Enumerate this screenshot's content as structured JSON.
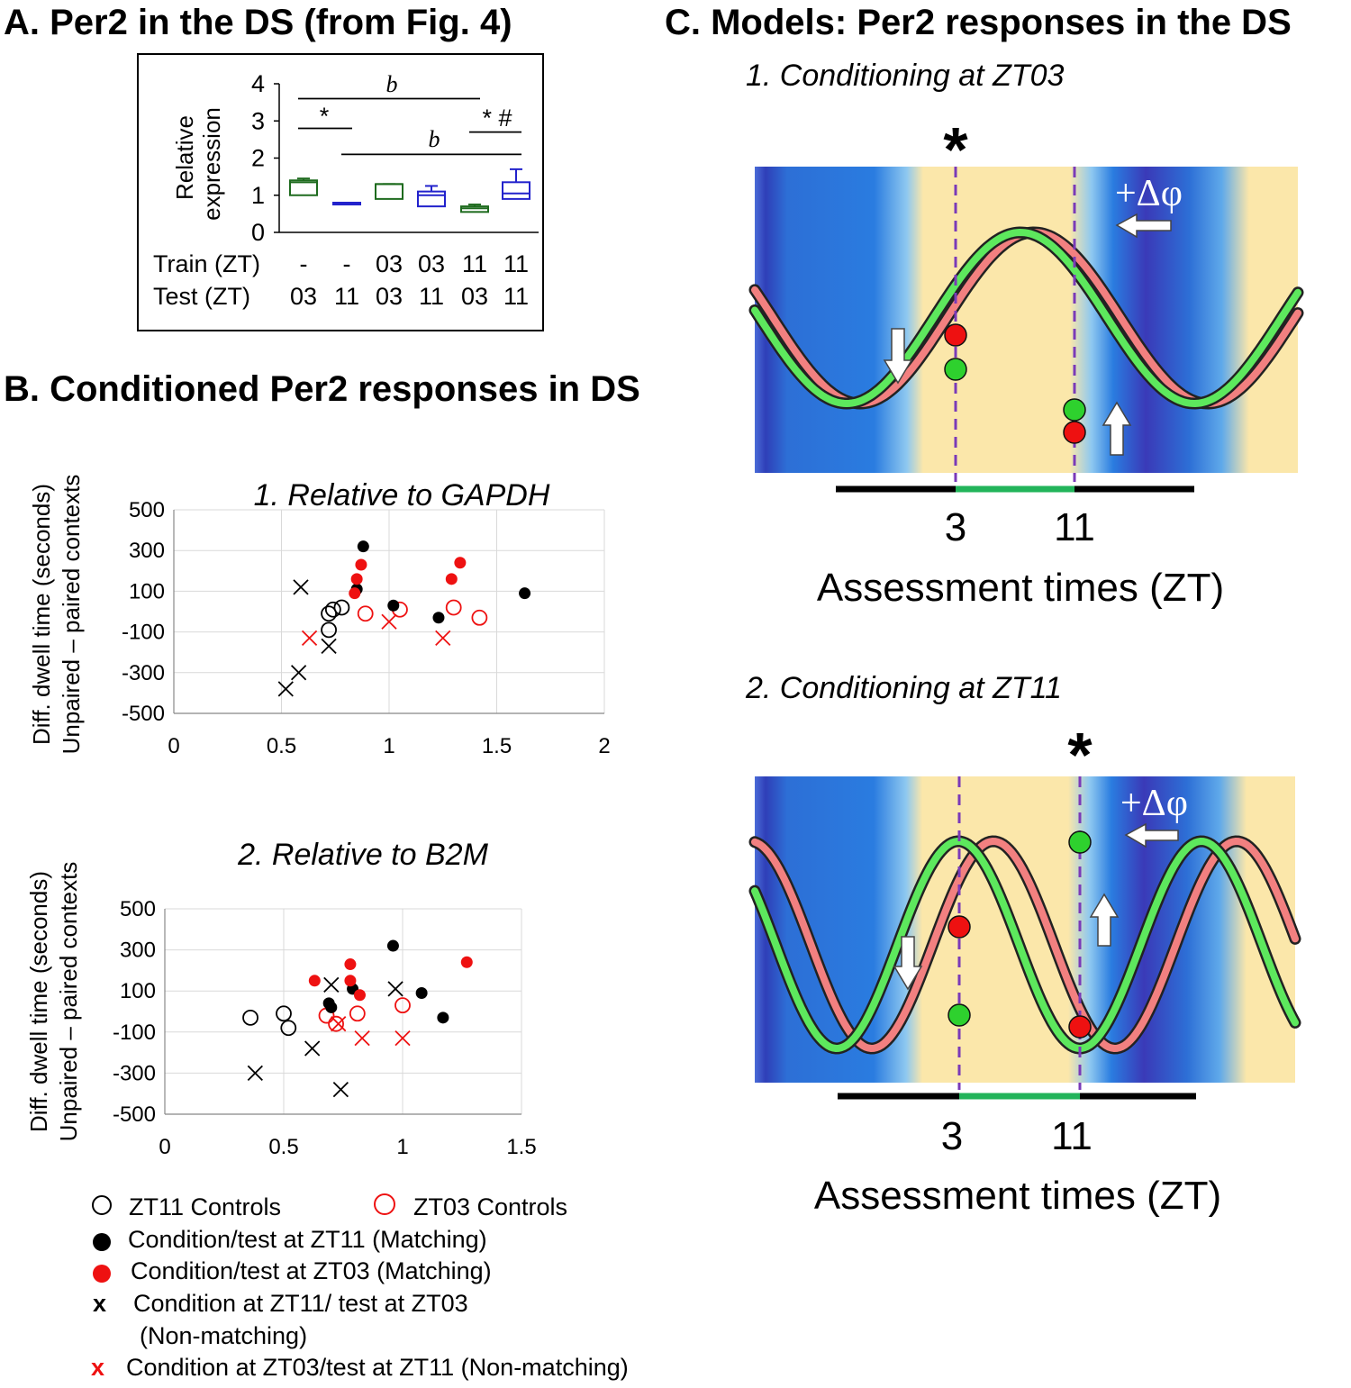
{
  "colors": {
    "green": "#1e6b1e",
    "blue": "#2222cc",
    "red": "#ee1111",
    "black": "#000000",
    "curve_green": "#5de85d",
    "curve_red": "#f28080",
    "bar_green": "#22b45a",
    "night": "#2a6fd6",
    "day": "#fbe7aa"
  },
  "panelA": {
    "title": "A. Per2 in the DS (from Fig. 4)",
    "ylabel_1": "Relative",
    "ylabel_2": "expression",
    "yticks": [
      "0",
      "1",
      "2",
      "3",
      "4"
    ],
    "row1_label": "Train (ZT)",
    "row2_label": "Test  (ZT)",
    "train": [
      "-",
      "-",
      "03",
      "03",
      "11",
      "11"
    ],
    "test": [
      "03",
      "11",
      "03",
      "11",
      "03",
      "11"
    ],
    "sig_b": "b",
    "sig_star": "*",
    "sig_star_hash": "* #"
  },
  "panelB": {
    "title": "B. Conditioned Per2 responses in DS",
    "ylabel_1": "Diff. dwell time (seconds)",
    "ylabel_2": "Unpaired – paired contexts",
    "legend": {
      "zt11_controls": "ZT11  Controls",
      "zt03_controls": "ZT03  Controls",
      "match11": "Condition/test  at  ZT11  (Matching)",
      "match03": "Condition/test  at  ZT03  (Matching)",
      "x_label": "x",
      "nonmatch11_a": "Condition  at ZT11/  test at ZT03",
      "nonmatch11_b": "(Non-matching)",
      "nonmatch03": "Condition  at ZT03/test  at ZT11  (Non-matching)"
    }
  },
  "panelC": {
    "title": "C. Models: Per2 responses in the DS",
    "model1_title": "1. Conditioning at ZT03",
    "model2_title": "2. Conditioning at ZT11",
    "star": "*",
    "phase_label": "+Δφ",
    "tick_3": "3",
    "tick_11": "11",
    "xlabel": "Assessment times (ZT)"
  },
  "chart_data": [
    {
      "type": "box",
      "title": "A. Per2 in the DS (from Fig. 4)",
      "ylabel": "Relative expression",
      "ylim": [
        0,
        4
      ],
      "groups": [
        {
          "train": "-",
          "test": "03",
          "color": "green",
          "q1": 1.0,
          "median": 1.35,
          "q3": 1.4,
          "whisker_low": 1.0,
          "whisker_high": 1.45
        },
        {
          "train": "-",
          "test": "11",
          "color": "blue",
          "q1": 0.75,
          "median": 0.78,
          "q3": 0.8,
          "whisker_low": 0.75,
          "whisker_high": 0.8
        },
        {
          "train": "03",
          "test": "03",
          "color": "green",
          "q1": 0.9,
          "median": 1.3,
          "q3": 1.3,
          "whisker_low": 0.9,
          "whisker_high": 1.3
        },
        {
          "train": "03",
          "test": "11",
          "color": "blue",
          "q1": 0.7,
          "median": 1.0,
          "q3": 1.1,
          "whisker_low": 0.7,
          "whisker_high": 1.25
        },
        {
          "train": "11",
          "test": "03",
          "color": "green",
          "q1": 0.55,
          "median": 0.65,
          "q3": 0.7,
          "whisker_low": 0.55,
          "whisker_high": 0.75
        },
        {
          "train": "11",
          "test": "11",
          "color": "blue",
          "q1": 0.9,
          "median": 1.05,
          "q3": 1.35,
          "whisker_low": 0.9,
          "whisker_high": 1.7
        }
      ],
      "annotations": [
        {
          "text": "b",
          "from_group": 1,
          "to_group": 5,
          "level": 3.6
        },
        {
          "text": "*",
          "from_group": 1,
          "to_group": 2,
          "level": 2.8
        },
        {
          "text": "b",
          "from_group": 2,
          "to_group": 6,
          "level": 2.1
        },
        {
          "text": "* #",
          "from_group": 5,
          "to_group": 6,
          "level": 2.7
        }
      ]
    },
    {
      "type": "scatter",
      "title": "1. Relative to GAPDH",
      "xlabel": "",
      "ylabel": "Diff. dwell time (seconds) Unpaired – paired contexts",
      "xlim": [
        0,
        2
      ],
      "ylim": [
        -500,
        500
      ],
      "xticks": [
        "0",
        "0.5",
        "1",
        "1.5",
        "2"
      ],
      "yticks": [
        "500",
        "300",
        "100",
        "-100",
        "-300",
        "-500"
      ],
      "grid": true,
      "series": [
        {
          "name": "ZT11 Controls",
          "marker": "open-circle",
          "color": "#000000",
          "points": [
            [
              0.72,
              -90
            ],
            [
              0.72,
              -10
            ],
            [
              0.74,
              10
            ],
            [
              0.78,
              20
            ]
          ]
        },
        {
          "name": "ZT03 Controls",
          "marker": "open-circle",
          "color": "#ee1111",
          "points": [
            [
              0.89,
              -10
            ],
            [
              1.05,
              10
            ],
            [
              1.3,
              20
            ],
            [
              1.42,
              -30
            ]
          ]
        },
        {
          "name": "Condition/test at ZT11 (Matching)",
          "marker": "filled-circle",
          "color": "#000000",
          "points": [
            [
              0.85,
              110
            ],
            [
              0.88,
              320
            ],
            [
              1.02,
              30
            ],
            [
              1.23,
              -30
            ],
            [
              1.63,
              90
            ]
          ]
        },
        {
          "name": "Condition/test at ZT03 (Matching)",
          "marker": "filled-circle",
          "color": "#ee1111",
          "points": [
            [
              0.84,
              90
            ],
            [
              0.85,
              160
            ],
            [
              0.87,
              230
            ],
            [
              1.29,
              160
            ],
            [
              1.33,
              240
            ]
          ]
        },
        {
          "name": "Condition at ZT11/ test at ZT03 (Non-matching)",
          "marker": "x",
          "color": "#000000",
          "points": [
            [
              0.52,
              -380
            ],
            [
              0.58,
              -300
            ],
            [
              0.59,
              120
            ],
            [
              0.72,
              -170
            ]
          ]
        },
        {
          "name": "Condition at ZT03/test at ZT11 (Non-matching)",
          "marker": "x",
          "color": "#ee1111",
          "points": [
            [
              0.63,
              -130
            ],
            [
              1.0,
              -50
            ],
            [
              1.25,
              -130
            ]
          ]
        }
      ]
    },
    {
      "type": "scatter",
      "title": "2. Relative to B2M",
      "xlabel": "",
      "ylabel": "Diff. dwell time (seconds) Unpaired – paired contexts",
      "xlim": [
        0,
        1.5
      ],
      "ylim": [
        -500,
        500
      ],
      "xticks": [
        "0",
        "0.5",
        "1",
        "1.5"
      ],
      "yticks": [
        "500",
        "300",
        "100",
        "-100",
        "-300",
        "-500"
      ],
      "grid": true,
      "series": [
        {
          "name": "ZT11 Controls",
          "marker": "open-circle",
          "color": "#000000",
          "points": [
            [
              0.36,
              -30
            ],
            [
              0.5,
              -10
            ],
            [
              0.52,
              -80
            ]
          ]
        },
        {
          "name": "ZT03 Controls",
          "marker": "open-circle",
          "color": "#ee1111",
          "points": [
            [
              0.68,
              -20
            ],
            [
              0.72,
              -60
            ],
            [
              0.81,
              -10
            ],
            [
              1.0,
              30
            ]
          ]
        },
        {
          "name": "Condition/test at ZT11 (Matching)",
          "marker": "filled-circle",
          "color": "#000000",
          "points": [
            [
              0.69,
              40
            ],
            [
              0.7,
              20
            ],
            [
              0.79,
              110
            ],
            [
              0.96,
              320
            ],
            [
              1.08,
              90
            ],
            [
              1.17,
              -30
            ]
          ]
        },
        {
          "name": "Condition/test at ZT03 (Matching)",
          "marker": "filled-circle",
          "color": "#ee1111",
          "points": [
            [
              0.63,
              150
            ],
            [
              0.78,
              230
            ],
            [
              0.78,
              150
            ],
            [
              0.82,
              80
            ],
            [
              1.27,
              240
            ]
          ]
        },
        {
          "name": "Condition at ZT11/ test at ZT03 (Non-matching)",
          "marker": "x",
          "color": "#000000",
          "points": [
            [
              0.38,
              -300
            ],
            [
              0.62,
              -180
            ],
            [
              0.7,
              130
            ],
            [
              0.74,
              -380
            ],
            [
              0.97,
              110
            ]
          ]
        },
        {
          "name": "Condition at ZT03/test at ZT11 (Non-matching)",
          "marker": "x",
          "color": "#ee1111",
          "points": [
            [
              0.73,
              -60
            ],
            [
              0.83,
              -130
            ],
            [
              1.0,
              -130
            ]
          ]
        }
      ]
    }
  ]
}
